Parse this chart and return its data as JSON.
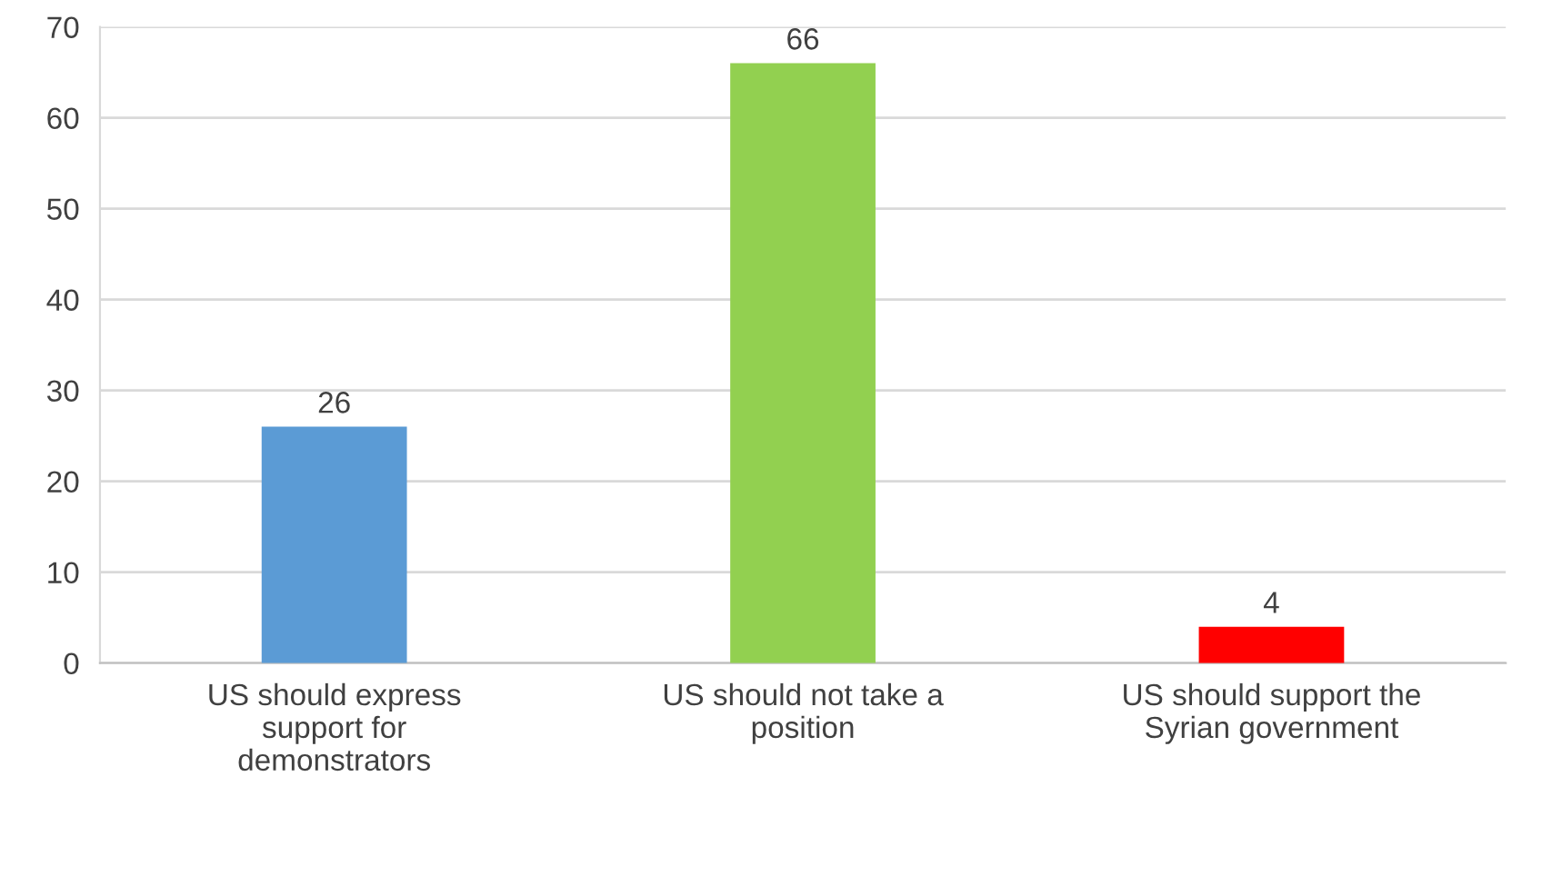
{
  "chart_data": {
    "type": "bar",
    "categories": [
      "US should express support for demonstrators",
      "US should not take a position",
      "US should support the Syrian government"
    ],
    "values": [
      26,
      66,
      4
    ],
    "colors": [
      "#5b9bd5",
      "#92d050",
      "#ff0000"
    ],
    "ylim": [
      0,
      70
    ],
    "yticks": [
      0,
      10,
      20,
      30,
      40,
      50,
      60,
      70
    ],
    "grid": "y",
    "data_labels": true
  }
}
